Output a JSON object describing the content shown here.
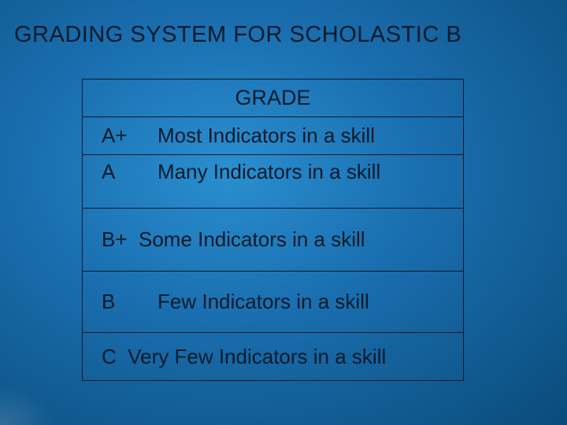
{
  "heading": "GRADING SYSTEM FOR SCHOLASTIC B",
  "table": {
    "header": "GRADE",
    "rows": [
      {
        "grade": "A+",
        "desc": "Most Indicators in a skill"
      },
      {
        "grade": "A",
        "desc": "Many Indicators in a skill"
      },
      {
        "grade": "B+",
        "desc": "Some  Indicators in a skill",
        "merged": true
      },
      {
        "grade": "B",
        "desc": "Few Indicators in a skill"
      },
      {
        "grade": "C",
        "desc": "Very Few Indicators in a skill",
        "merged": true,
        "prefix": "C "
      }
    ]
  },
  "colors": {
    "text": "#0a1a2a",
    "border": "#0a1a2a",
    "bg_gradient_inner": "#2a8fd0",
    "bg_gradient_mid": "#1a6fb0",
    "bg_gradient_outer": "#0a4b7a"
  },
  "fonts": {
    "heading_size": 29,
    "cell_size": 26,
    "header_size": 27,
    "family": "Arial"
  }
}
